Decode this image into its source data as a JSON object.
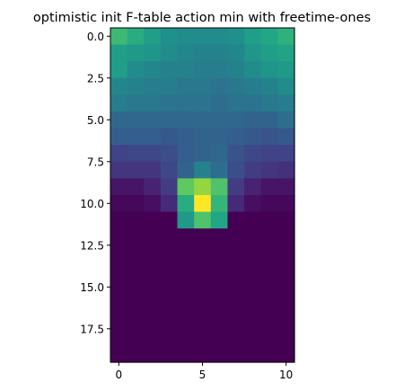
{
  "chart_data": {
    "type": "heatmap",
    "title": "optimistic init F-table action min with freetime-ones",
    "xlabel": "",
    "ylabel": "",
    "colormap": "viridis",
    "x_ticks": [
      0,
      5,
      10
    ],
    "x_tick_labels": [
      "0",
      "5",
      "10"
    ],
    "y_ticks": [
      0.0,
      2.5,
      5.0,
      7.5,
      10.0,
      12.5,
      15.0,
      17.5
    ],
    "y_tick_labels": [
      "0.0",
      "2.5",
      "5.0",
      "7.5",
      "10.0",
      "12.5",
      "15.0",
      "17.5"
    ],
    "n_rows": 20,
    "n_cols": 11,
    "value_range": [
      0,
      1
    ],
    "values": [
      [
        0.68,
        0.62,
        0.56,
        0.5,
        0.48,
        0.48,
        0.48,
        0.5,
        0.56,
        0.6,
        0.64
      ],
      [
        0.56,
        0.54,
        0.52,
        0.48,
        0.46,
        0.44,
        0.44,
        0.46,
        0.52,
        0.56,
        0.58
      ],
      [
        0.56,
        0.48,
        0.46,
        0.44,
        0.44,
        0.42,
        0.42,
        0.44,
        0.48,
        0.52,
        0.54
      ],
      [
        0.46,
        0.44,
        0.42,
        0.42,
        0.4,
        0.4,
        0.38,
        0.4,
        0.42,
        0.44,
        0.48
      ],
      [
        0.42,
        0.4,
        0.4,
        0.38,
        0.38,
        0.38,
        0.36,
        0.38,
        0.38,
        0.4,
        0.42
      ],
      [
        0.34,
        0.34,
        0.34,
        0.34,
        0.34,
        0.34,
        0.34,
        0.34,
        0.32,
        0.32,
        0.36
      ],
      [
        0.3,
        0.3,
        0.3,
        0.28,
        0.3,
        0.32,
        0.32,
        0.3,
        0.28,
        0.26,
        0.28
      ],
      [
        0.2,
        0.22,
        0.22,
        0.24,
        0.3,
        0.32,
        0.34,
        0.26,
        0.22,
        0.2,
        0.2
      ],
      [
        0.16,
        0.16,
        0.16,
        0.22,
        0.32,
        0.44,
        0.36,
        0.24,
        0.18,
        0.16,
        0.14
      ],
      [
        0.06,
        0.06,
        0.1,
        0.18,
        0.75,
        0.84,
        0.72,
        0.18,
        0.1,
        0.06,
        0.06
      ],
      [
        0.02,
        0.02,
        0.04,
        0.12,
        0.62,
        1.0,
        0.66,
        0.12,
        0.04,
        0.02,
        0.02
      ],
      [
        0.0,
        0.0,
        0.0,
        0.0,
        0.54,
        0.72,
        0.6,
        0.0,
        0.0,
        0.0,
        0.0
      ],
      [
        0.0,
        0.0,
        0.0,
        0.0,
        0.0,
        0.0,
        0.0,
        0.0,
        0.0,
        0.0,
        0.0
      ],
      [
        0.0,
        0.0,
        0.0,
        0.0,
        0.0,
        0.0,
        0.0,
        0.0,
        0.0,
        0.0,
        0.0
      ],
      [
        0.0,
        0.0,
        0.0,
        0.0,
        0.0,
        0.0,
        0.0,
        0.0,
        0.0,
        0.0,
        0.0
      ],
      [
        0.0,
        0.0,
        0.0,
        0.0,
        0.0,
        0.0,
        0.0,
        0.0,
        0.0,
        0.0,
        0.0
      ],
      [
        0.0,
        0.0,
        0.0,
        0.0,
        0.0,
        0.0,
        0.0,
        0.0,
        0.0,
        0.0,
        0.0
      ],
      [
        0.0,
        0.0,
        0.0,
        0.0,
        0.0,
        0.0,
        0.0,
        0.0,
        0.0,
        0.0,
        0.0
      ],
      [
        0.0,
        0.0,
        0.0,
        0.0,
        0.0,
        0.0,
        0.0,
        0.0,
        0.0,
        0.0,
        0.0
      ],
      [
        0.0,
        0.0,
        0.0,
        0.0,
        0.0,
        0.0,
        0.0,
        0.0,
        0.0,
        0.0,
        0.0
      ]
    ],
    "grid": false,
    "legend": "none"
  }
}
